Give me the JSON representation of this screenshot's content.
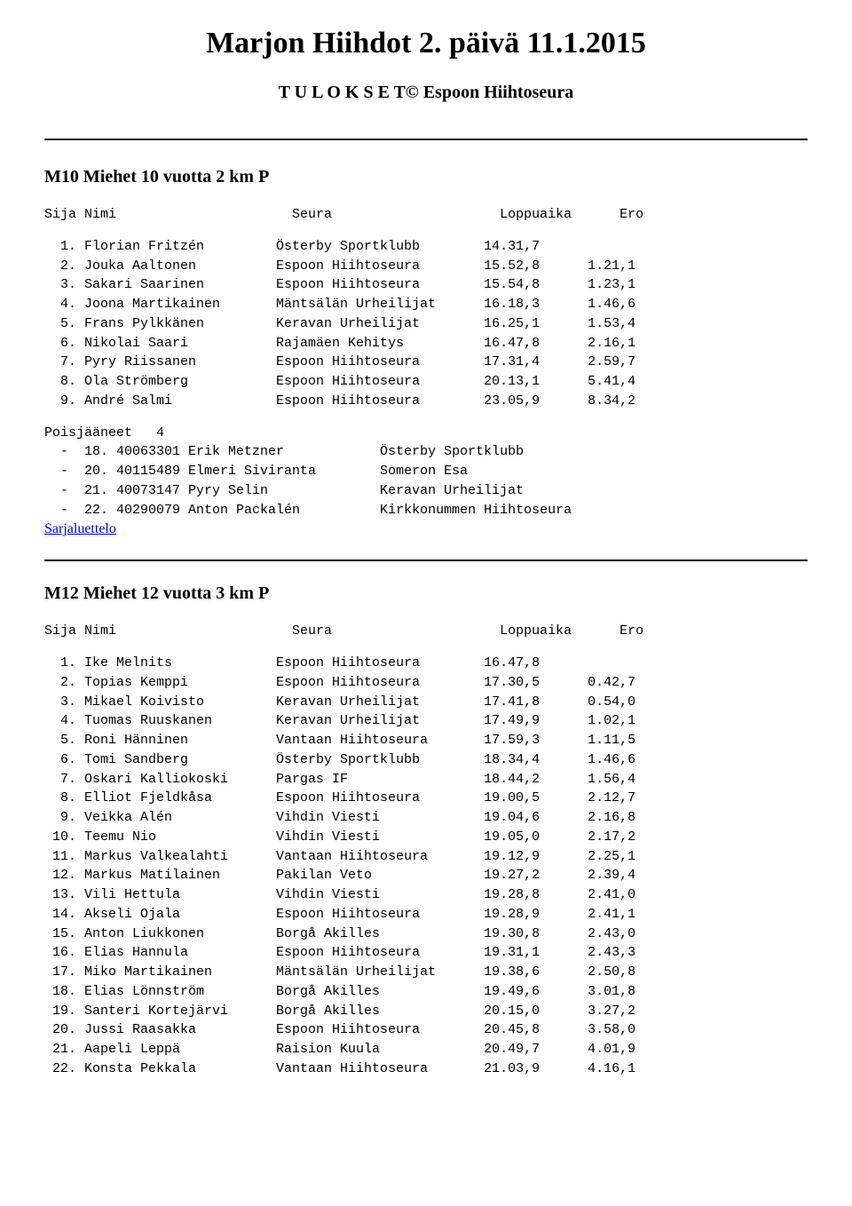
{
  "page": {
    "title": "Marjon Hiihdot 2. päivä 11.1.2015",
    "subtitle": "T U L O K S E T© Espoon Hiihtoseura"
  },
  "columns": {
    "sija": "Sija",
    "nimi": "Nimi",
    "seura": "Seura",
    "loppuaika": "Loppuaika",
    "ero": "Ero"
  },
  "dns_label": "Poisjääneet",
  "series_link": "Sarjaluettelo",
  "sections": [
    {
      "title": "M10 Miehet 10 vuotta 2 km P",
      "rows": [
        {
          "pos": "1.",
          "name": "Florian Fritzén",
          "club": "Österby Sportklubb",
          "time": "14.31,7",
          "gap": ""
        },
        {
          "pos": "2.",
          "name": "Jouka Aaltonen",
          "club": "Espoon Hiihtoseura",
          "time": "15.52,8",
          "gap": "1.21,1"
        },
        {
          "pos": "3.",
          "name": "Sakari Saarinen",
          "club": "Espoon Hiihtoseura",
          "time": "15.54,8",
          "gap": "1.23,1"
        },
        {
          "pos": "4.",
          "name": "Joona Martikainen",
          "club": "Mäntsälän Urheilijat",
          "time": "16.18,3",
          "gap": "1.46,6"
        },
        {
          "pos": "5.",
          "name": "Frans Pylkkänen",
          "club": "Keravan Urheilijat",
          "time": "16.25,1",
          "gap": "1.53,4"
        },
        {
          "pos": "6.",
          "name": "Nikolai Saari",
          "club": "Rajamäen Kehitys",
          "time": "16.47,8",
          "gap": "2.16,1"
        },
        {
          "pos": "7.",
          "name": "Pyry Riissanen",
          "club": "Espoon Hiihtoseura",
          "time": "17.31,4",
          "gap": "2.59,7"
        },
        {
          "pos": "8.",
          "name": "Ola Strömberg",
          "club": "Espoon Hiihtoseura",
          "time": "20.13,1",
          "gap": "5.41,4"
        },
        {
          "pos": "9.",
          "name": "André Salmi",
          "club": "Espoon Hiihtoseura",
          "time": "23.05,9",
          "gap": "8.34,2"
        }
      ],
      "dns_count": "4",
      "dns": [
        {
          "num": "18.",
          "id": "40063301",
          "name": "Erik Metzner",
          "club": "Österby Sportklubb"
        },
        {
          "num": "20.",
          "id": "40115489",
          "name": "Elmeri Siviranta",
          "club": "Someron Esa"
        },
        {
          "num": "21.",
          "id": "40073147",
          "name": "Pyry Selin",
          "club": "Keravan Urheilijat"
        },
        {
          "num": "22.",
          "id": "40290079",
          "name": "Anton Packalén",
          "club": "Kirkkonummen Hiihtoseura"
        }
      ]
    },
    {
      "title": "M12 Miehet 12 vuotta 3 km P",
      "rows": [
        {
          "pos": "1.",
          "name": "Ike Melnits",
          "club": "Espoon Hiihtoseura",
          "time": "16.47,8",
          "gap": ""
        },
        {
          "pos": "2.",
          "name": "Topias Kemppi",
          "club": "Espoon Hiihtoseura",
          "time": "17.30,5",
          "gap": "0.42,7"
        },
        {
          "pos": "3.",
          "name": "Mikael Koivisto",
          "club": "Keravan Urheilijat",
          "time": "17.41,8",
          "gap": "0.54,0"
        },
        {
          "pos": "4.",
          "name": "Tuomas Ruuskanen",
          "club": "Keravan Urheilijat",
          "time": "17.49,9",
          "gap": "1.02,1"
        },
        {
          "pos": "5.",
          "name": "Roni Hänninen",
          "club": "Vantaan Hiihtoseura",
          "time": "17.59,3",
          "gap": "1.11,5"
        },
        {
          "pos": "6.",
          "name": "Tomi Sandberg",
          "club": "Österby Sportklubb",
          "time": "18.34,4",
          "gap": "1.46,6"
        },
        {
          "pos": "7.",
          "name": "Oskari Kalliokoski",
          "club": "Pargas IF",
          "time": "18.44,2",
          "gap": "1.56,4"
        },
        {
          "pos": "8.",
          "name": "Elliot Fjeldkåsa",
          "club": "Espoon Hiihtoseura",
          "time": "19.00,5",
          "gap": "2.12,7"
        },
        {
          "pos": "9.",
          "name": "Veikka Alén",
          "club": "Vihdin Viesti",
          "time": "19.04,6",
          "gap": "2.16,8"
        },
        {
          "pos": "10.",
          "name": "Teemu Nio",
          "club": "Vihdin Viesti",
          "time": "19.05,0",
          "gap": "2.17,2"
        },
        {
          "pos": "11.",
          "name": "Markus Valkealahti",
          "club": "Vantaan Hiihtoseura",
          "time": "19.12,9",
          "gap": "2.25,1"
        },
        {
          "pos": "12.",
          "name": "Markus Matilainen",
          "club": "Pakilan Veto",
          "time": "19.27,2",
          "gap": "2.39,4"
        },
        {
          "pos": "13.",
          "name": "Vili Hettula",
          "club": "Vihdin Viesti",
          "time": "19.28,8",
          "gap": "2.41,0"
        },
        {
          "pos": "14.",
          "name": "Akseli Ojala",
          "club": "Espoon Hiihtoseura",
          "time": "19.28,9",
          "gap": "2.41,1"
        },
        {
          "pos": "15.",
          "name": "Anton Liukkonen",
          "club": "Borgå Akilles",
          "time": "19.30,8",
          "gap": "2.43,0"
        },
        {
          "pos": "16.",
          "name": "Elias Hannula",
          "club": "Espoon Hiihtoseura",
          "time": "19.31,1",
          "gap": "2.43,3"
        },
        {
          "pos": "17.",
          "name": "Miko Martikainen",
          "club": "Mäntsälän Urheilijat",
          "time": "19.38,6",
          "gap": "2.50,8"
        },
        {
          "pos": "18.",
          "name": "Elias Lönnström",
          "club": "Borgå Akilles",
          "time": "19.49,6",
          "gap": "3.01,8"
        },
        {
          "pos": "19.",
          "name": "Santeri Kortejärvi",
          "club": "Borgå Akilles",
          "time": "20.15,0",
          "gap": "3.27,2"
        },
        {
          "pos": "20.",
          "name": "Jussi Raasakka",
          "club": "Espoon Hiihtoseura",
          "time": "20.45,8",
          "gap": "3.58,0"
        },
        {
          "pos": "21.",
          "name": "Aapeli Leppä",
          "club": "Raision Kuula",
          "time": "20.49,7",
          "gap": "4.01,9"
        },
        {
          "pos": "22.",
          "name": "Konsta Pekkala",
          "club": "Vantaan Hiihtoseura",
          "time": "21.03,9",
          "gap": "4.16,1"
        }
      ],
      "dns_count": null,
      "dns": []
    }
  ]
}
